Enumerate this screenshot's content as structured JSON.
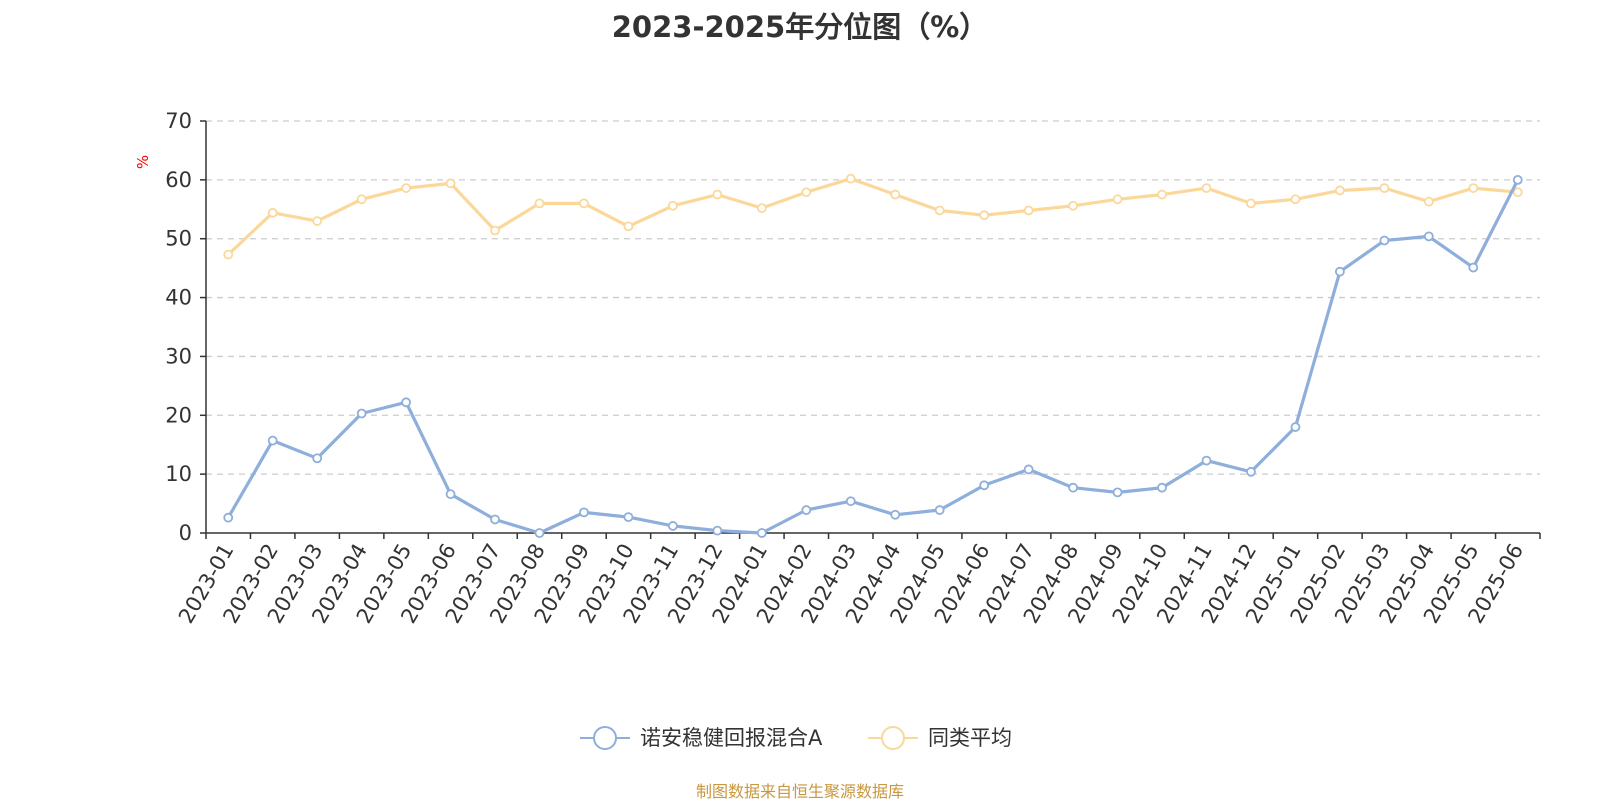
{
  "chart_data": {
    "type": "line",
    "title": "2023-2025年分位图（%）",
    "ylabel": "%",
    "ylim": [
      0,
      70
    ],
    "yticks": [
      0,
      10,
      20,
      30,
      40,
      50,
      60,
      70
    ],
    "grid": true,
    "legend_position": "bottom-center",
    "categories": [
      "2023-01",
      "2023-02",
      "2023-03",
      "2023-04",
      "2023-05",
      "2023-06",
      "2023-07",
      "2023-08",
      "2023-09",
      "2023-10",
      "2023-11",
      "2023-12",
      "2024-01",
      "2024-02",
      "2024-03",
      "2024-04",
      "2024-05",
      "2024-06",
      "2024-07",
      "2024-08",
      "2024-09",
      "2024-10",
      "2024-11",
      "2024-12",
      "2025-01",
      "2025-02",
      "2025-03",
      "2025-04",
      "2025-05",
      "2025-06"
    ],
    "series": [
      {
        "name": "诺安稳健回报混合A",
        "color": "#8eaedc",
        "values": [
          2.6,
          15.7,
          12.7,
          20.3,
          22.2,
          6.6,
          2.3,
          0.0,
          3.5,
          2.7,
          1.2,
          0.4,
          0.0,
          3.9,
          5.4,
          3.1,
          3.9,
          8.1,
          10.8,
          7.7,
          6.9,
          7.7,
          12.3,
          10.4,
          18.0,
          44.4,
          49.7,
          50.4,
          45.1,
          60.0
        ]
      },
      {
        "name": "同类平均",
        "color": "#fbd89a",
        "values": [
          47.3,
          54.4,
          53.0,
          56.7,
          58.6,
          59.4,
          51.4,
          56.0,
          56.0,
          52.1,
          55.6,
          57.5,
          55.2,
          57.9,
          60.2,
          57.5,
          54.8,
          54.0,
          54.8,
          55.6,
          56.7,
          57.5,
          58.6,
          56.0,
          56.7,
          58.2,
          58.6,
          56.3,
          58.6,
          57.9
        ]
      }
    ]
  },
  "source_note": "制图数据来自恒生聚源数据库"
}
